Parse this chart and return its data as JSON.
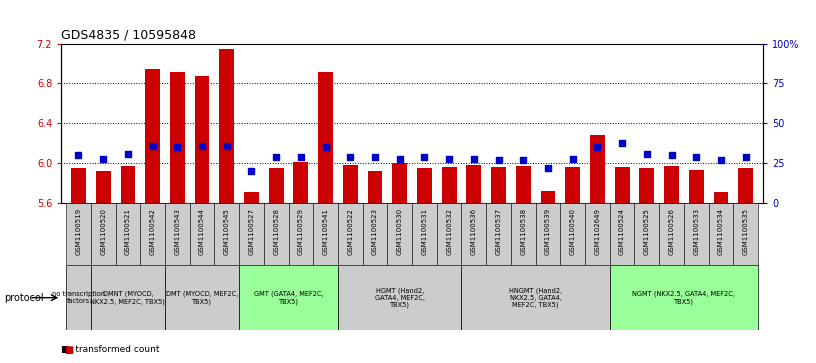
{
  "title": "GDS4835 / 10595848",
  "samples": [
    "GSM1100519",
    "GSM1100520",
    "GSM1100521",
    "GSM1100542",
    "GSM1100543",
    "GSM1100544",
    "GSM1100545",
    "GSM1100527",
    "GSM1100528",
    "GSM1100529",
    "GSM1100541",
    "GSM1100522",
    "GSM1100523",
    "GSM1100530",
    "GSM1100531",
    "GSM1100532",
    "GSM1100536",
    "GSM1100537",
    "GSM1100538",
    "GSM1100539",
    "GSM1100540",
    "GSM1102649",
    "GSM1100524",
    "GSM1100525",
    "GSM1100526",
    "GSM1100533",
    "GSM1100534",
    "GSM1100535"
  ],
  "bar_values": [
    5.95,
    5.92,
    5.97,
    6.95,
    6.92,
    6.88,
    7.15,
    5.71,
    5.95,
    6.01,
    6.92,
    5.98,
    5.92,
    6.0,
    5.95,
    5.96,
    5.98,
    5.96,
    5.97,
    5.72,
    5.96,
    6.28,
    5.96,
    5.95,
    5.97,
    5.93,
    5.71,
    5.95
  ],
  "percentile_values": [
    30,
    28,
    31,
    36,
    35,
    36,
    36,
    20,
    29,
    29,
    35,
    29,
    29,
    28,
    29,
    28,
    28,
    27,
    27,
    22,
    28,
    35,
    38,
    31,
    30,
    29,
    27,
    29
  ],
  "ylim_left": [
    5.6,
    7.2
  ],
  "ylim_right": [
    0,
    100
  ],
  "yticks_left": [
    5.6,
    6.0,
    6.4,
    6.8,
    7.2
  ],
  "yticks_right": [
    0,
    25,
    50,
    75,
    100
  ],
  "bar_color": "#CC0000",
  "dot_color": "#0000CC",
  "bar_bottom": 5.6,
  "protocol_groups": [
    {
      "label": "no transcription\nfactors",
      "start": 0,
      "end": 1,
      "color": "#CCCCCC"
    },
    {
      "label": "DMNT (MYOCD,\nNKX2.5, MEF2C, TBX5)",
      "start": 1,
      "end": 4,
      "color": "#CCCCCC"
    },
    {
      "label": "DMT (MYOCD, MEF2C,\nTBX5)",
      "start": 4,
      "end": 7,
      "color": "#CCCCCC"
    },
    {
      "label": "GMT (GATA4, MEF2C,\nTBX5)",
      "start": 7,
      "end": 11,
      "color": "#99FF99"
    },
    {
      "label": "HGMT (Hand2,\nGATA4, MEF2C,\nTBX5)",
      "start": 11,
      "end": 16,
      "color": "#CCCCCC"
    },
    {
      "label": "HNGMT (Hand2,\nNKX2.5, GATA4,\nMEF2C, TBX5)",
      "start": 16,
      "end": 22,
      "color": "#CCCCCC"
    },
    {
      "label": "NGMT (NKX2.5, GATA4, MEF2C,\nTBX5)",
      "start": 22,
      "end": 28,
      "color": "#99FF99"
    }
  ],
  "background_color": "#FFFFFF",
  "left_axis_color": "#CC0000",
  "right_axis_color": "#0000CC",
  "sample_box_color": "#CCCCCC"
}
